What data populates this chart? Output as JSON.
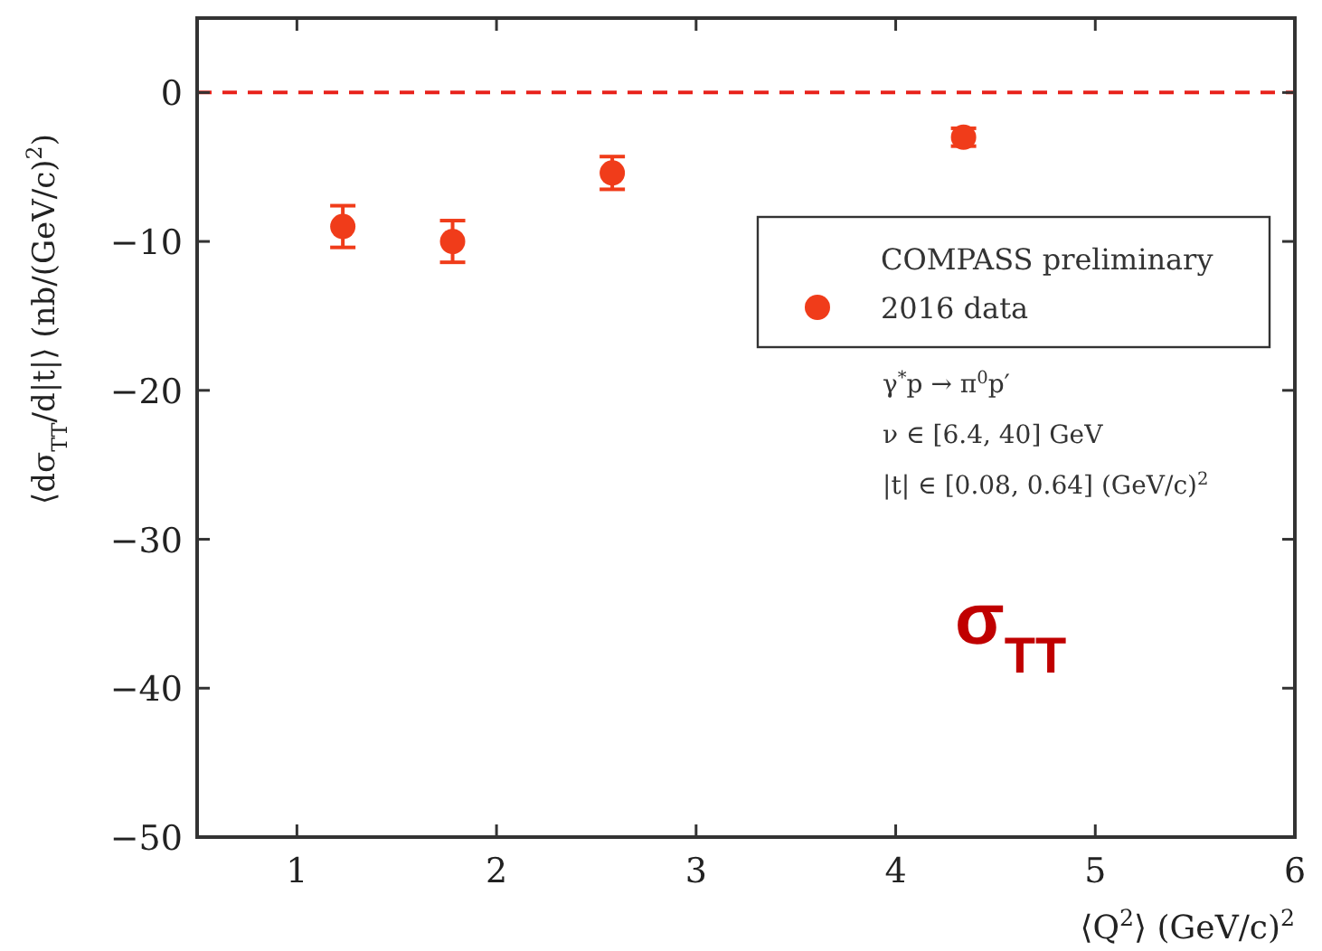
{
  "chart_data": {
    "type": "scatter",
    "xlabel": "⟨Q$^{2}$⟩ (GeV/c)$^{2}$",
    "ylabel": "⟨dσ$_{TT}$/d|t|⟩ (nb/(GeV/c)$^{2}$)",
    "legend_title": "COMPASS preliminary",
    "legend": "right",
    "marker": "circle",
    "x": [
      1.23,
      1.78,
      2.58,
      4.34
    ],
    "series": [
      {
        "name": "2016 data",
        "color": "#f03c1a",
        "values": [
          -9.0,
          -10.0,
          -5.4,
          -3.0
        ],
        "errors": [
          1.4,
          1.4,
          1.1,
          0.6
        ]
      }
    ],
    "xlim": [
      0.5,
      6
    ],
    "xticks": [
      1,
      2,
      3,
      4,
      5,
      6
    ],
    "ylim": [
      -50,
      5
    ],
    "yticks": [
      -50,
      -40,
      -30,
      -20,
      -10,
      0
    ],
    "ref_lines": [
      {
        "axis": "y",
        "value": 0,
        "color": "#e8221b",
        "line_style": "dashed"
      }
    ],
    "annotations": [
      "γ$^{*}$p → π$^{0}$p′",
      "ν ∈ [6.4, 40] GeV",
      "|t| ∈ [0.08, 0.64] (GeV/c)$^{2}$",
      "σ$_{TT}$"
    ]
  }
}
